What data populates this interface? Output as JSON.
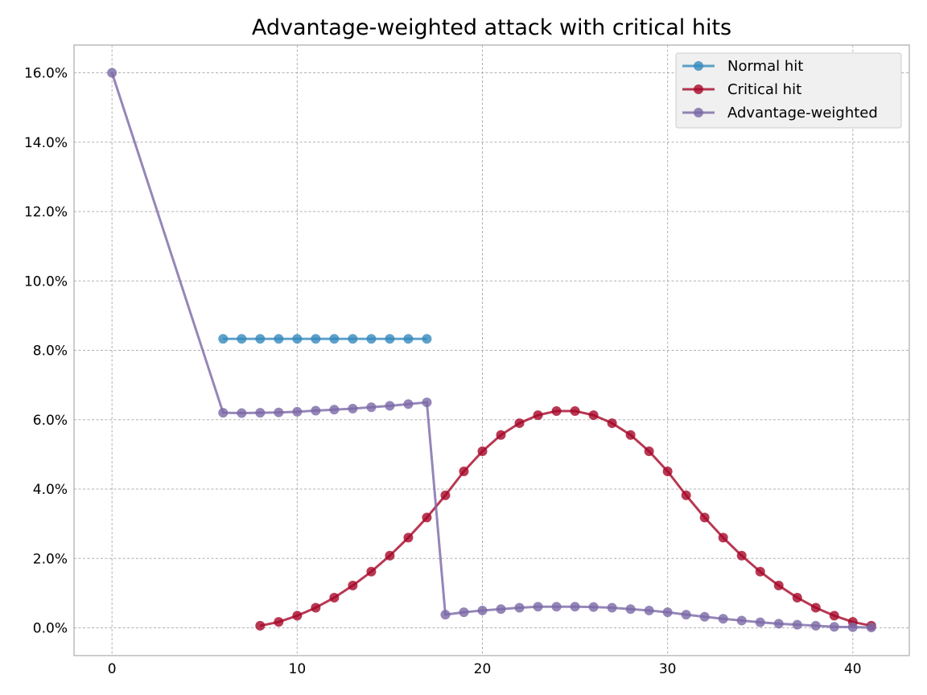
{
  "chart_data": {
    "type": "line",
    "title": "Advantage-weighted attack with critical hits",
    "xlabel": "",
    "ylabel": "",
    "xlim": [
      -2.05,
      43.05
    ],
    "ylim": [
      -0.008,
      0.168
    ],
    "x_ticks": [
      0,
      10,
      20,
      30,
      40
    ],
    "x_tick_labels": [
      "0",
      "10",
      "20",
      "30",
      "40"
    ],
    "y_ticks": [
      0.0,
      0.02,
      0.04,
      0.06,
      0.08,
      0.1,
      0.12,
      0.14,
      0.16
    ],
    "y_tick_labels": [
      "0.0%",
      "2.0%",
      "4.0%",
      "6.0%",
      "8.0%",
      "10.0%",
      "12.0%",
      "14.0%",
      "16.0%"
    ],
    "grid": true,
    "legend_position": "top-right",
    "series": [
      {
        "name": "Normal hit",
        "color": "#348abd",
        "x": [
          6,
          7,
          8,
          9,
          10,
          11,
          12,
          13,
          14,
          15,
          16,
          17
        ],
        "values": [
          0.0833,
          0.0833,
          0.0833,
          0.0833,
          0.0833,
          0.0833,
          0.0833,
          0.0833,
          0.0833,
          0.0833,
          0.0833,
          0.0833
        ]
      },
      {
        "name": "Critical hit",
        "color": "#a60628",
        "x": [
          8,
          9,
          10,
          11,
          12,
          13,
          14,
          15,
          16,
          17,
          18,
          19,
          20,
          21,
          22,
          23,
          24,
          25,
          26,
          27,
          28,
          29,
          30,
          31,
          32,
          33,
          34,
          35,
          36,
          37,
          38,
          39,
          40,
          41
        ],
        "values": [
          0.0006,
          0.0017,
          0.0035,
          0.0058,
          0.0087,
          0.0122,
          0.0162,
          0.0208,
          0.026,
          0.0318,
          0.0382,
          0.0451,
          0.0509,
          0.0556,
          0.059,
          0.0613,
          0.0625,
          0.0625,
          0.0613,
          0.059,
          0.0556,
          0.0509,
          0.0451,
          0.0382,
          0.0318,
          0.026,
          0.0208,
          0.0162,
          0.0122,
          0.0087,
          0.0058,
          0.0035,
          0.0017,
          0.0006
        ]
      },
      {
        "name": "Advantage-weighted",
        "color": "#7a68a6",
        "x": [
          0,
          6,
          7,
          8,
          9,
          10,
          11,
          12,
          13,
          14,
          15,
          16,
          17,
          18,
          19,
          20,
          21,
          22,
          23,
          24,
          25,
          26,
          27,
          28,
          29,
          30,
          31,
          32,
          33,
          34,
          35,
          36,
          37,
          38,
          39,
          40,
          41
        ],
        "values": [
          0.16,
          0.062,
          0.0619,
          0.062,
          0.0621,
          0.0623,
          0.0626,
          0.0629,
          0.0632,
          0.0636,
          0.064,
          0.0645,
          0.065,
          0.0038,
          0.0045,
          0.005,
          0.0054,
          0.0058,
          0.0061,
          0.0061,
          0.0061,
          0.006,
          0.0058,
          0.0054,
          0.005,
          0.0045,
          0.0038,
          0.0032,
          0.0026,
          0.0021,
          0.0016,
          0.0012,
          0.0009,
          0.0006,
          0.0003,
          0.0002,
          0.0001
        ]
      }
    ]
  }
}
